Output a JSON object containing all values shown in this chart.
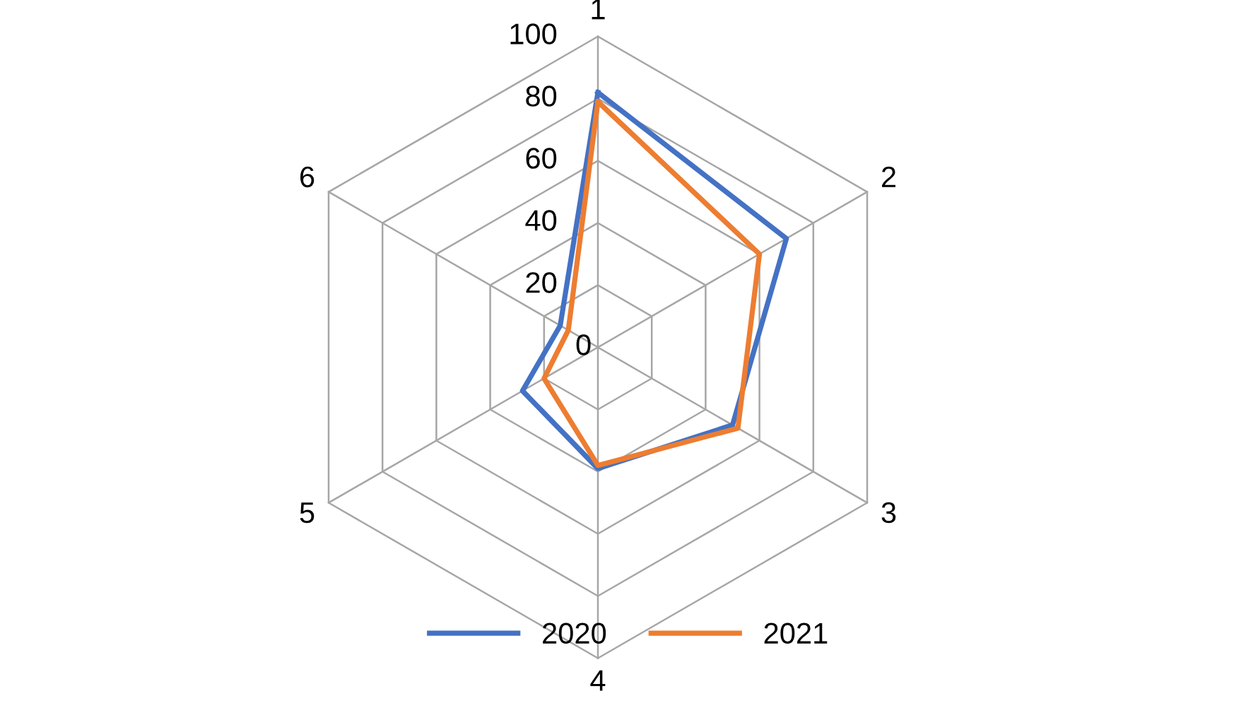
{
  "chart_data": {
    "type": "radar",
    "categories": [
      "1",
      "2",
      "3",
      "4",
      "5",
      "6"
    ],
    "series": [
      {
        "name": "2020",
        "color": "#4472c4",
        "values": [
          82,
          70,
          50,
          39,
          28,
          14
        ]
      },
      {
        "name": "2021",
        "color": "#ed7d31",
        "values": [
          79,
          60,
          52,
          38,
          20,
          11
        ]
      }
    ],
    "ylim": [
      0,
      100
    ],
    "yticks": [
      0,
      20,
      40,
      60,
      80,
      100
    ],
    "grid": true,
    "legend": "bottom",
    "marker": "none",
    "line_style": "solid"
  }
}
